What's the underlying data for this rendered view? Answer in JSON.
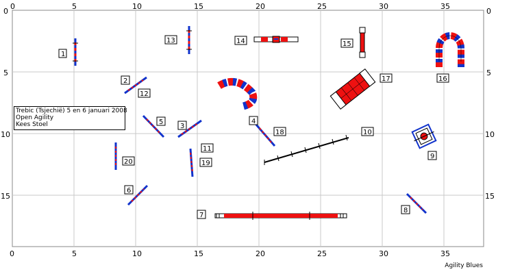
{
  "axes": {
    "x_ticks": [
      "0",
      "5",
      "10",
      "15",
      "20",
      "25",
      "30",
      "35"
    ],
    "y_ticks": [
      "0",
      "5",
      "10",
      "15"
    ]
  },
  "info": {
    "line1": "Trebic (Tsjechië) 5 en 6 januari 2008",
    "line2": "Open Agility",
    "line3": "Kees Stoel"
  },
  "brand": "Agility Blues",
  "numbers": [
    "1",
    "2",
    "3",
    "4",
    "5",
    "6",
    "7",
    "8",
    "9",
    "10",
    "11",
    "12",
    "13",
    "14",
    "15",
    "16",
    "17",
    "18",
    "19",
    "20"
  ],
  "colors": {
    "red": "#ee1111",
    "blue": "#1133cc",
    "grid": "#c8c8c8",
    "black": "#000000"
  }
}
